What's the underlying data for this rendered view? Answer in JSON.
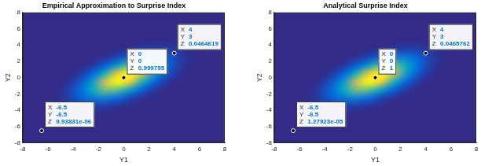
{
  "chart_data": [
    {
      "type": "heatmap",
      "title": "Empirical Approximation to Surprise Index",
      "xlabel": "Y1",
      "ylabel": "Y2",
      "xlim": [
        -8,
        8
      ],
      "ylim": [
        -8,
        8
      ],
      "xticks": [
        -8,
        -6,
        -4,
        -2,
        0,
        2,
        4,
        6,
        8
      ],
      "yticks": [
        -8,
        -6,
        -4,
        -2,
        0,
        2,
        4,
        6,
        8
      ],
      "grid": false,
      "x": [
        -7.5,
        -6.5,
        -5.5,
        -4.5,
        -3.5,
        -2.5,
        -1.5,
        -0.5,
        0.5,
        1.5,
        2.5,
        3.5,
        4.5,
        5.5,
        6.5,
        7.5
      ],
      "y": [
        -7.5,
        -6.5,
        -5.5,
        -4.5,
        -3.5,
        -2.5,
        -1.5,
        -0.5,
        0.5,
        1.5,
        2.5,
        3.5,
        4.5,
        5.5,
        6.5,
        7.5
      ],
      "z": [
        [
          0,
          0,
          0,
          0,
          0,
          0,
          0,
          0,
          0,
          0,
          0,
          0,
          0,
          0,
          0,
          0
        ],
        [
          0,
          0,
          0,
          0,
          0,
          0,
          0,
          0,
          0,
          0,
          0,
          0,
          0,
          0,
          0,
          0
        ],
        [
          0,
          0,
          0,
          0,
          0,
          0,
          0,
          0,
          0,
          0,
          0,
          0,
          0,
          0,
          0,
          0
        ],
        [
          0,
          0,
          0.002,
          0.005,
          0.007,
          0.006,
          0.003,
          0.001,
          0,
          0,
          0,
          0,
          0,
          0,
          0,
          0
        ],
        [
          0,
          0.001,
          0.005,
          0.018,
          0.038,
          0.048,
          0.037,
          0.017,
          0.005,
          0.001,
          0,
          0,
          0,
          0,
          0,
          0
        ],
        [
          0,
          0.001,
          0.007,
          0.035,
          0.104,
          0.189,
          0.208,
          0.139,
          0.057,
          0.014,
          0.002,
          0,
          0,
          0,
          0,
          0
        ],
        [
          0,
          0,
          0.004,
          0.031,
          0.133,
          0.347,
          0.549,
          0.527,
          0.307,
          0.108,
          0.023,
          0.003,
          0,
          0,
          0,
          0
        ],
        [
          0,
          0,
          0.001,
          0.013,
          0.08,
          0.299,
          0.68,
          0.936,
          0.781,
          0.396,
          0.121,
          0.023,
          0.003,
          0,
          0,
          0
        ],
        [
          0,
          0,
          0,
          0.003,
          0.023,
          0.121,
          0.396,
          0.781,
          0.936,
          0.68,
          0.299,
          0.08,
          0.013,
          0.001,
          0,
          0
        ],
        [
          0,
          0,
          0,
          0,
          0.003,
          0.023,
          0.108,
          0.307,
          0.527,
          0.549,
          0.347,
          0.133,
          0.031,
          0.004,
          0,
          0
        ],
        [
          0,
          0,
          0,
          0,
          0,
          0.002,
          0.014,
          0.057,
          0.139,
          0.208,
          0.189,
          0.104,
          0.035,
          0.007,
          0.001,
          0
        ],
        [
          0,
          0,
          0,
          0,
          0,
          0,
          0.001,
          0.005,
          0.017,
          0.037,
          0.048,
          0.038,
          0.018,
          0.005,
          0.001,
          0
        ],
        [
          0,
          0,
          0,
          0,
          0,
          0,
          0,
          0,
          0.001,
          0.003,
          0.006,
          0.007,
          0.005,
          0.002,
          0,
          0
        ],
        [
          0,
          0,
          0,
          0,
          0,
          0,
          0,
          0,
          0,
          0,
          0,
          0,
          0,
          0,
          0,
          0
        ],
        [
          0,
          0,
          0,
          0,
          0,
          0,
          0,
          0,
          0,
          0,
          0,
          0,
          0,
          0,
          0,
          0
        ],
        [
          0,
          0,
          0,
          0,
          0,
          0,
          0,
          0,
          0,
          0,
          0,
          0,
          0,
          0,
          0,
          0
        ]
      ],
      "datatip_labels": [
        "X",
        "Y",
        "Z"
      ],
      "datatips": [
        {
          "x": 0,
          "y": 0,
          "z": 0.999795
        },
        {
          "x": 4,
          "y": 3,
          "z": 0.0464619
        },
        {
          "x": -6.5,
          "y": -6.5,
          "z": {
            "value": 9.93831e-06,
            "label": "9.93831e-06"
          }
        }
      ]
    },
    {
      "type": "heatmap",
      "title": "Analytical Surprise Index",
      "xlabel": "Y1",
      "ylabel": "Y2",
      "xlim": [
        -8,
        8
      ],
      "ylim": [
        -8,
        8
      ],
      "xticks": [
        -8,
        -6,
        -4,
        -2,
        0,
        2,
        4,
        6,
        8
      ],
      "yticks": [
        -8,
        -6,
        -4,
        -2,
        0,
        2,
        4,
        6,
        8
      ],
      "grid": false,
      "x": [
        -7.5,
        -6.5,
        -5.5,
        -4.5,
        -3.5,
        -2.5,
        -1.5,
        -0.5,
        0.5,
        1.5,
        2.5,
        3.5,
        4.5,
        5.5,
        6.5,
        7.5
      ],
      "y": [
        -7.5,
        -6.5,
        -5.5,
        -4.5,
        -3.5,
        -2.5,
        -1.5,
        -0.5,
        0.5,
        1.5,
        2.5,
        3.5,
        4.5,
        5.5,
        6.5,
        7.5
      ],
      "z": [
        [
          0,
          0,
          0,
          0,
          0,
          0,
          0,
          0,
          0,
          0,
          0,
          0,
          0,
          0,
          0,
          0
        ],
        [
          0,
          0,
          0,
          0,
          0,
          0,
          0,
          0,
          0,
          0,
          0,
          0,
          0,
          0,
          0,
          0
        ],
        [
          0,
          0,
          0,
          0,
          0,
          0,
          0,
          0,
          0,
          0,
          0,
          0,
          0,
          0,
          0,
          0
        ],
        [
          0,
          0,
          0.002,
          0.005,
          0.007,
          0.006,
          0.003,
          0.001,
          0,
          0,
          0,
          0,
          0,
          0,
          0,
          0
        ],
        [
          0,
          0.001,
          0.005,
          0.018,
          0.038,
          0.048,
          0.037,
          0.017,
          0.005,
          0.001,
          0,
          0,
          0,
          0,
          0,
          0
        ],
        [
          0,
          0.001,
          0.007,
          0.035,
          0.104,
          0.189,
          0.208,
          0.139,
          0.057,
          0.014,
          0.002,
          0,
          0,
          0,
          0,
          0
        ],
        [
          0,
          0,
          0.004,
          0.031,
          0.133,
          0.347,
          0.549,
          0.527,
          0.307,
          0.108,
          0.023,
          0.003,
          0,
          0,
          0,
          0
        ],
        [
          0,
          0,
          0.001,
          0.013,
          0.08,
          0.299,
          0.68,
          0.936,
          0.781,
          0.396,
          0.121,
          0.023,
          0.003,
          0,
          0,
          0
        ],
        [
          0,
          0,
          0,
          0.003,
          0.023,
          0.121,
          0.396,
          0.781,
          0.936,
          0.68,
          0.299,
          0.08,
          0.013,
          0.001,
          0,
          0
        ],
        [
          0,
          0,
          0,
          0,
          0.003,
          0.023,
          0.108,
          0.307,
          0.527,
          0.549,
          0.347,
          0.133,
          0.031,
          0.004,
          0,
          0
        ],
        [
          0,
          0,
          0,
          0,
          0,
          0.002,
          0.014,
          0.057,
          0.139,
          0.208,
          0.189,
          0.104,
          0.035,
          0.007,
          0.001,
          0
        ],
        [
          0,
          0,
          0,
          0,
          0,
          0,
          0.001,
          0.005,
          0.017,
          0.037,
          0.048,
          0.038,
          0.018,
          0.005,
          0.001,
          0
        ],
        [
          0,
          0,
          0,
          0,
          0,
          0,
          0,
          0,
          0.001,
          0.003,
          0.006,
          0.007,
          0.005,
          0.002,
          0,
          0
        ],
        [
          0,
          0,
          0,
          0,
          0,
          0,
          0,
          0,
          0,
          0,
          0,
          0,
          0,
          0,
          0,
          0
        ],
        [
          0,
          0,
          0,
          0,
          0,
          0,
          0,
          0,
          0,
          0,
          0,
          0,
          0,
          0,
          0,
          0
        ],
        [
          0,
          0,
          0,
          0,
          0,
          0,
          0,
          0,
          0,
          0,
          0,
          0,
          0,
          0,
          0,
          0
        ]
      ],
      "datatip_labels": [
        "X",
        "Y",
        "Z"
      ],
      "datatips": [
        {
          "x": 0,
          "y": 0,
          "z": 1
        },
        {
          "x": 4,
          "y": 3,
          "z": 0.0465762
        },
        {
          "x": -6.5,
          "y": -6.5,
          "z": {
            "value": 1.27923e-05,
            "label": "1.27923e-05"
          }
        }
      ]
    }
  ]
}
